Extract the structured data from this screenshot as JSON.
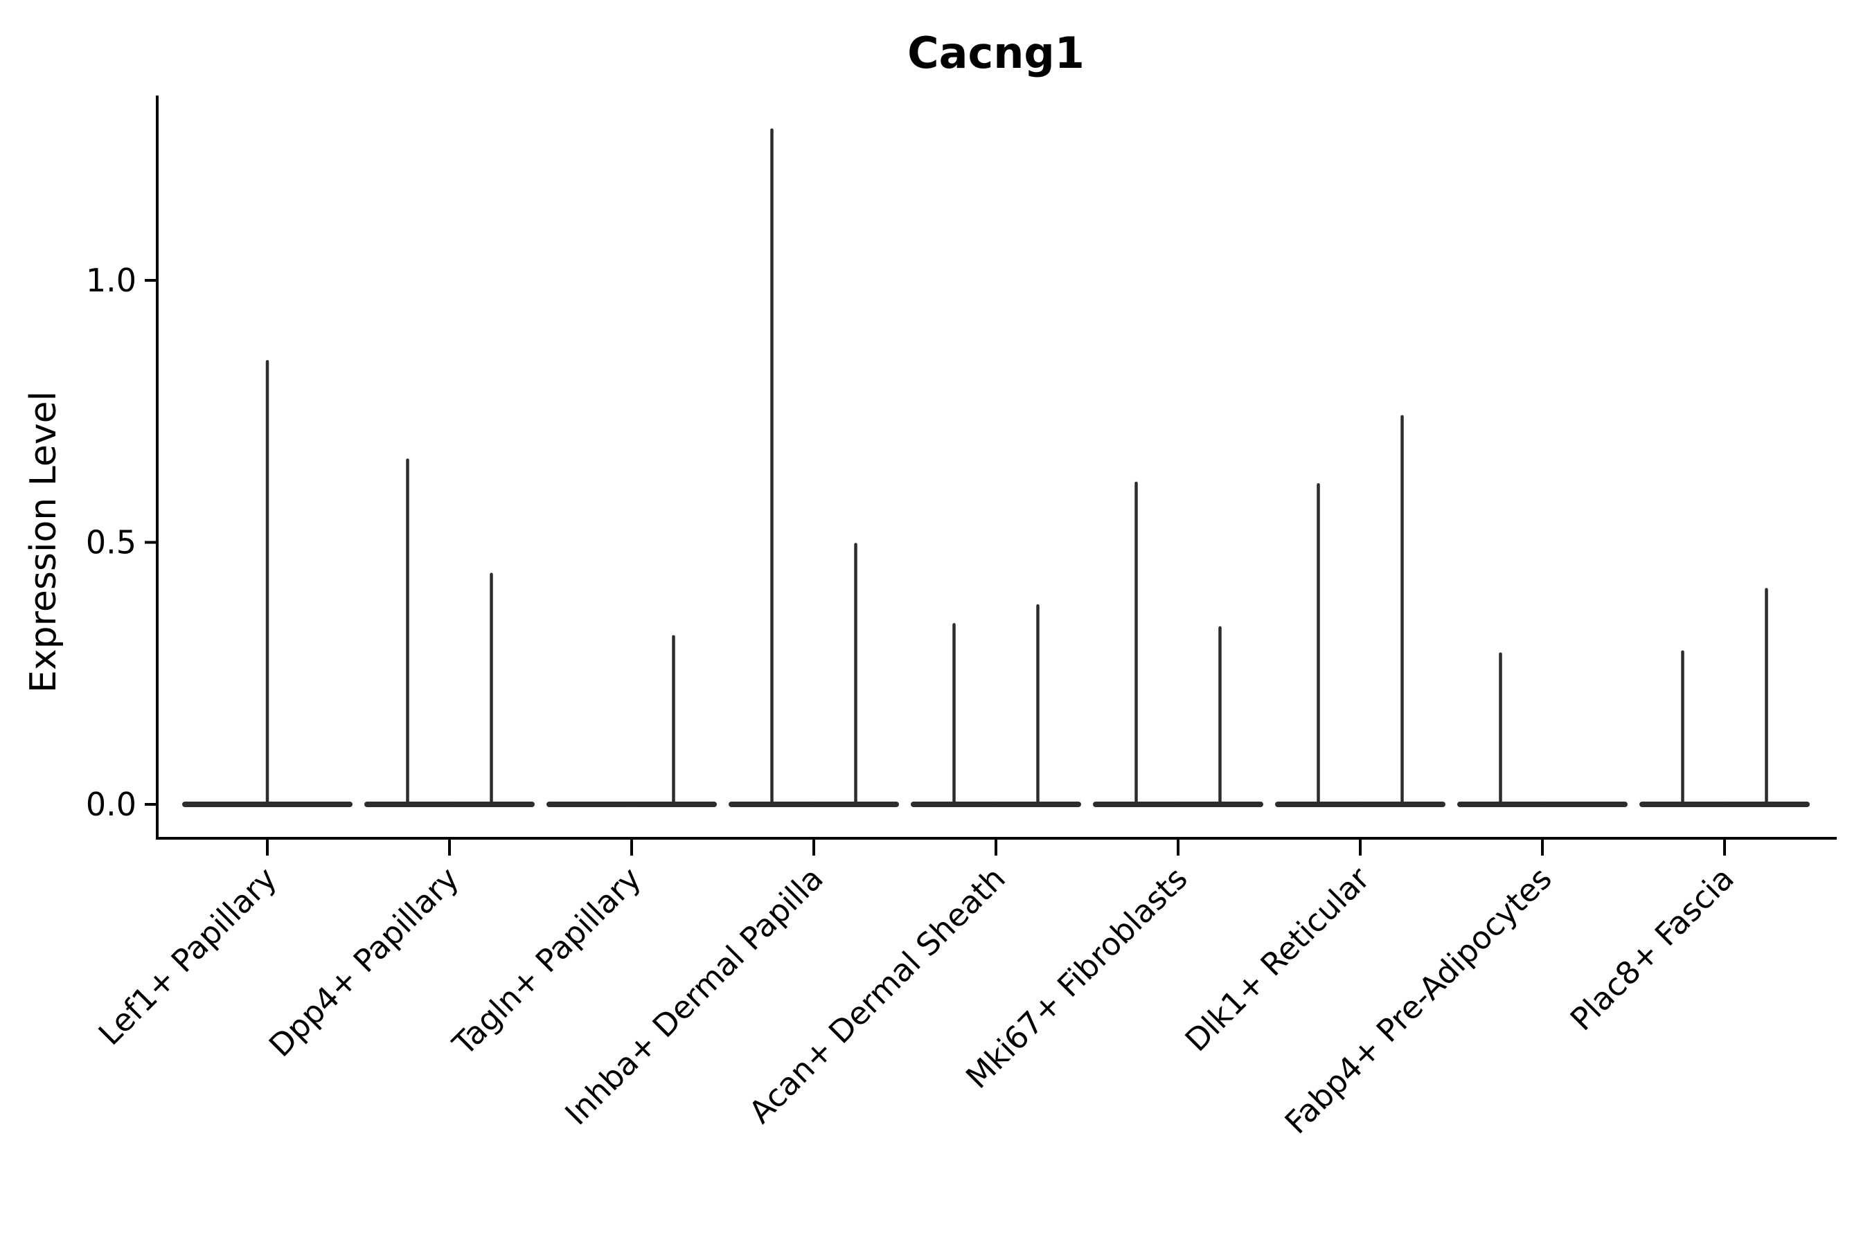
{
  "chart_data": {
    "type": "violin",
    "title": "Cacng1",
    "xlabel": "",
    "ylabel": "Expression Level",
    "ytick_labels": [
      "0.0",
      "0.5",
      "1.0"
    ],
    "ytick_values": [
      0.0,
      0.5,
      1.0
    ],
    "ylim": [
      -0.065,
      1.35
    ],
    "grid": false,
    "legend": null,
    "background_color": "#ffffff",
    "axis_color": "#000000",
    "violin_color": "#2d2d2d",
    "categories": [
      "Lef1+ Papillary",
      "Dpp4+ Papillary",
      "Tagln+ Papillary",
      "Inhba+ Dermal Papilla",
      "Acan+ Dermal Sheath",
      "Mki67+ Fibroblasts",
      "Dlk1+ Reticular",
      "Fabp4+ Pre-Adipocytes",
      "Plac8+ Fascia"
    ],
    "violins": [
      {
        "category": "Lef1+ Papillary",
        "layout": "single",
        "maxima": [
          0.845
        ]
      },
      {
        "category": "Dpp4+ Papillary",
        "layout": "split",
        "maxima": [
          0.657,
          0.439
        ]
      },
      {
        "category": "Tagln+ Papillary",
        "layout": "split",
        "maxima": [
          0.0,
          0.32
        ]
      },
      {
        "category": "Inhba+ Dermal Papilla",
        "layout": "split",
        "maxima": [
          1.287,
          0.496
        ]
      },
      {
        "category": "Acan+ Dermal Sheath",
        "layout": "split",
        "maxima": [
          0.343,
          0.379
        ]
      },
      {
        "category": "Mki67+ Fibroblasts",
        "layout": "split",
        "maxima": [
          0.613,
          0.337
        ]
      },
      {
        "category": "Dlk1+ Reticular",
        "layout": "split",
        "maxima": [
          0.61,
          0.74
        ]
      },
      {
        "category": "Fabp4+ Pre-Adipocytes",
        "layout": "split",
        "maxima": [
          0.287,
          0.0
        ]
      },
      {
        "category": "Plac8+ Fascia",
        "layout": "split",
        "maxima": [
          0.291,
          0.41
        ]
      }
    ]
  }
}
